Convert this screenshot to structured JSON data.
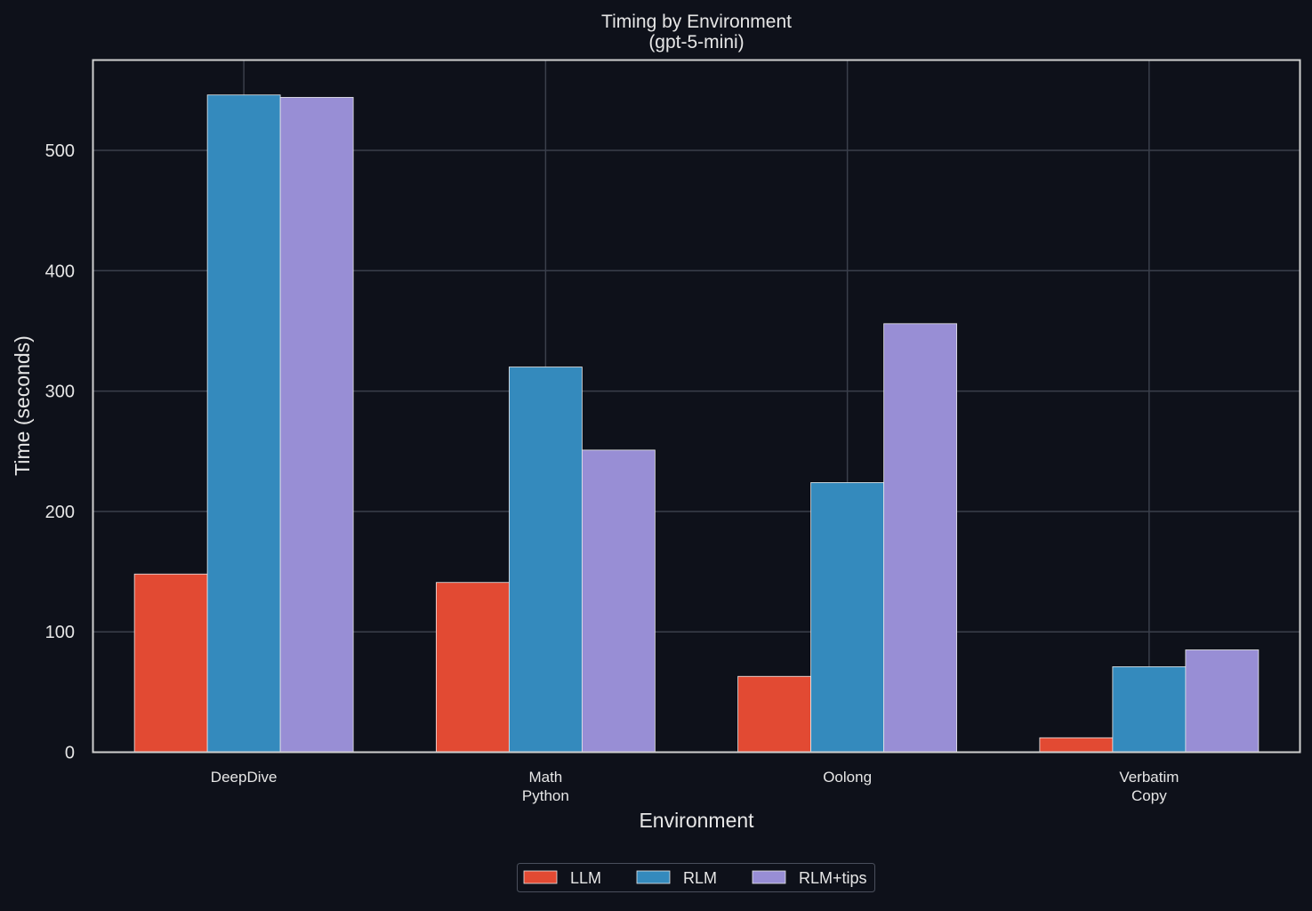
{
  "chart_data": {
    "type": "bar",
    "title": "Timing by Environment",
    "subtitle": "(gpt-5-mini)",
    "xlabel": "Environment",
    "ylabel": "Time (seconds)",
    "ylim": [
      0,
      575
    ],
    "yticks": [
      0,
      100,
      200,
      300,
      400,
      500
    ],
    "grid": true,
    "legend_position": "bottom-center",
    "categories": [
      {
        "lines": [
          "DeepDive"
        ]
      },
      {
        "lines": [
          "Math",
          "Python"
        ]
      },
      {
        "lines": [
          "Oolong"
        ]
      },
      {
        "lines": [
          "Verbatim",
          "Copy"
        ]
      }
    ],
    "series": [
      {
        "name": "LLM",
        "color": "#e24a33",
        "values": [
          148,
          141,
          63,
          12
        ]
      },
      {
        "name": "RLM",
        "color": "#348abd",
        "values": [
          546,
          320,
          224,
          71
        ]
      },
      {
        "name": "RLM+tips",
        "color": "#988ed5",
        "values": [
          544,
          251,
          356,
          85
        ]
      }
    ]
  },
  "colors": {
    "background": "#0e111a",
    "axes_border": "#cfcfcf",
    "grid": "#3a3f4b",
    "text": "#e6e6e6"
  }
}
